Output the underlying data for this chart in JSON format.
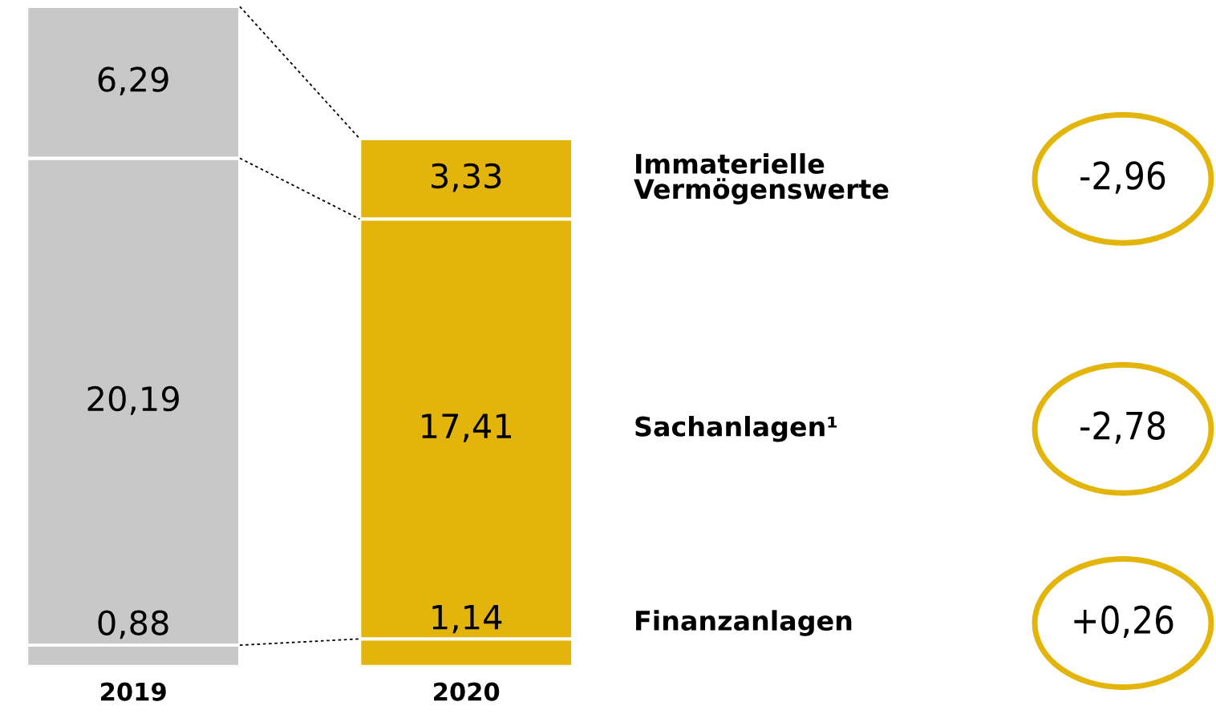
{
  "chart_data": {
    "type": "bar",
    "stacked": true,
    "categories": [
      "2019",
      "2020"
    ],
    "grid": false,
    "tick_labels": "x",
    "series": [
      {
        "name": "Finanzanlagen",
        "colors": [
          "#c8c8c8",
          "#e3b50b"
        ],
        "values": [
          0.88,
          1.14
        ],
        "value_labels": [
          "0,88",
          "1,14"
        ]
      },
      {
        "name": "Sachanlagen¹",
        "colors": [
          "#c8c8c8",
          "#e3b50b"
        ],
        "values": [
          20.19,
          17.41
        ],
        "value_labels": [
          "20,19",
          "17,41"
        ]
      },
      {
        "name": "Immaterielle Vermögenswerte",
        "colors": [
          "#c8c8c8",
          "#e3b50b"
        ],
        "values": [
          6.29,
          3.33
        ],
        "value_labels": [
          "6,29",
          "3,33"
        ]
      }
    ],
    "annotations": [
      "-2,96",
      "-2,78",
      "+0,26"
    ]
  }
}
